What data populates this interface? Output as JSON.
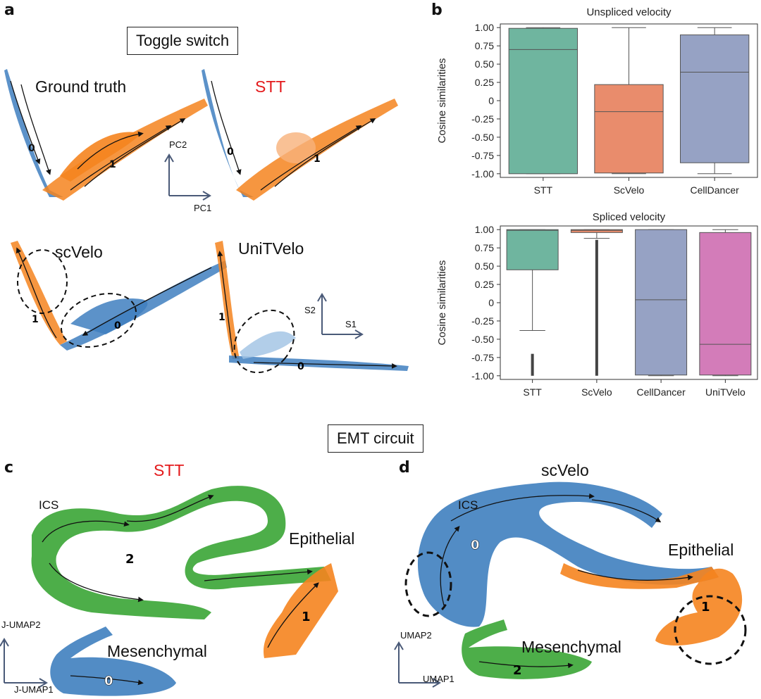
{
  "panels": {
    "a": "a",
    "b": "b",
    "c": "c",
    "d": "d"
  },
  "sections": {
    "toggle": "Toggle switch",
    "emt": "EMT circuit"
  },
  "panel_a": {
    "ground_truth": "Ground truth",
    "stt": "STT",
    "scvelo": "scVelo",
    "unitvelo": "UniTVelo",
    "pc1": "PC1",
    "pc2": "PC2",
    "s1": "S1",
    "s2": "S2",
    "cluster_0": "0",
    "cluster_1": "1"
  },
  "panel_c": {
    "title": "STT",
    "ics": "ICS",
    "epithelial": "Epithelial",
    "mesenchymal": "Mesenchymal",
    "xaxis": "J-UMAP1",
    "yaxis": "J-UMAP2",
    "cluster_0": "0",
    "cluster_1": "1",
    "cluster_2": "2"
  },
  "panel_d": {
    "title": "scVelo",
    "ics": "ICS",
    "epithelial": "Epithelial",
    "mesenchymal": "Mesenchymal",
    "xaxis": "UMAP1",
    "yaxis": "UMAP2",
    "cluster_0": "0",
    "cluster_1": "1",
    "cluster_2": "2"
  },
  "colors": {
    "blue": "#3f7fbf",
    "orange": "#f5841f",
    "green": "#3aa535",
    "stt": "#6fb59f",
    "scvelo": "#e98c6c",
    "celldancer": "#96a2c4",
    "unitvelo": "#d37cb9",
    "red_label": "#e41a1c"
  },
  "chart_data": [
    {
      "type": "box",
      "title": "Unspliced velocity",
      "ylabel": "Cosine similarities",
      "ylim": [
        -1.05,
        1.05
      ],
      "yticks": [
        "1.00",
        "0.75",
        "0.50",
        "0.25",
        "0",
        "-0.25",
        "-0.50",
        "-0.75",
        "-1.00"
      ],
      "ytick_values": [
        1,
        0.75,
        0.5,
        0.25,
        0,
        -0.25,
        -0.5,
        -0.75,
        -1
      ],
      "categories": [
        "STT",
        "ScVelo",
        "CellDancer"
      ],
      "colors": [
        "#6fb59f",
        "#e98c6c",
        "#96a2c4"
      ],
      "boxes": [
        {
          "whisker_low": -1.0,
          "q1": -1.0,
          "median": 0.7,
          "q3": 0.99,
          "whisker_high": 1.0,
          "outliers": []
        },
        {
          "whisker_low": -1.0,
          "q1": -0.99,
          "median": -0.15,
          "q3": 0.22,
          "whisker_high": 1.0,
          "outliers": []
        },
        {
          "whisker_low": -1.0,
          "q1": -0.85,
          "median": 0.39,
          "q3": 0.9,
          "whisker_high": 1.0,
          "outliers": []
        }
      ]
    },
    {
      "type": "box",
      "title": "Spliced velocity",
      "ylabel": "Cosine similarities",
      "ylim": [
        -1.05,
        1.05
      ],
      "yticks": [
        "1.00",
        "0.75",
        "0.50",
        "0.25",
        "0",
        "-0.25",
        "-0.50",
        "-0.75",
        "-1.00"
      ],
      "ytick_values": [
        1,
        0.75,
        0.5,
        0.25,
        0,
        -0.25,
        -0.5,
        -0.75,
        -1
      ],
      "categories": [
        "STT",
        "ScVelo",
        "CellDancer",
        "UniTVelo"
      ],
      "colors": [
        "#6fb59f",
        "#e98c6c",
        "#96a2c4",
        "#d37cb9"
      ],
      "boxes": [
        {
          "whisker_low": -0.38,
          "q1": 0.45,
          "median": 0.99,
          "q3": 1.0,
          "whisker_high": 1.0,
          "outliers": [
            -0.7,
            -1.0
          ]
        },
        {
          "whisker_low": 0.88,
          "q1": 0.96,
          "median": 0.99,
          "q3": 1.0,
          "whisker_high": 1.0,
          "outliers": [
            -1.0,
            0.86
          ]
        },
        {
          "whisker_low": -1.0,
          "q1": -0.99,
          "median": 0.04,
          "q3": 1.0,
          "whisker_high": 1.0,
          "outliers": []
        },
        {
          "whisker_low": -1.0,
          "q1": -0.99,
          "median": -0.57,
          "q3": 0.96,
          "whisker_high": 1.0,
          "outliers": []
        }
      ]
    }
  ]
}
